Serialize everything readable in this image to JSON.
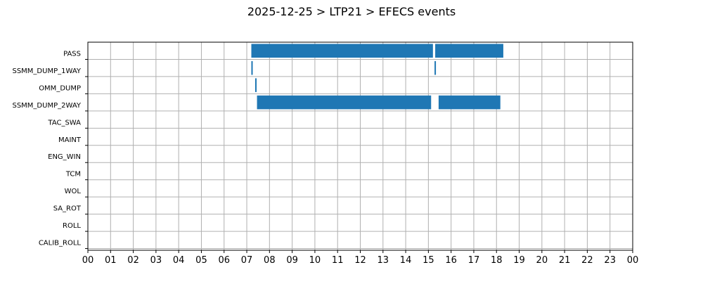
{
  "chart_data": {
    "type": "bar",
    "orientation": "horizontal-timeline",
    "title": "2025-12-25 > LTP21 > EFECS events",
    "xlabel": "",
    "ylabel": "",
    "xlim": [
      0,
      24
    ],
    "x_tick_labels": [
      "00",
      "01",
      "02",
      "03",
      "04",
      "05",
      "06",
      "07",
      "08",
      "09",
      "10",
      "11",
      "12",
      "13",
      "14",
      "15",
      "16",
      "17",
      "18",
      "19",
      "20",
      "21",
      "22",
      "23",
      "00"
    ],
    "categories": [
      "PASS",
      "SSMM_DUMP_1WAY",
      "OMM_DUMP",
      "SSMM_DUMP_2WAY",
      "TAC_SWA",
      "MAINT",
      "ENG_WIN",
      "TCM",
      "WOL",
      "SA_ROT",
      "ROLL",
      "CALIB_ROLL"
    ],
    "grid": true,
    "bar_color": "#1f77b4",
    "series": [
      {
        "category": "PASS",
        "intervals": [
          [
            7.2,
            15.2
          ],
          [
            15.3,
            18.3
          ]
        ]
      },
      {
        "category": "SSMM_DUMP_1WAY",
        "intervals": [
          [
            7.2,
            7.25
          ],
          [
            15.27,
            15.33
          ]
        ]
      },
      {
        "category": "OMM_DUMP",
        "intervals": [
          [
            7.37,
            7.43
          ]
        ]
      },
      {
        "category": "SSMM_DUMP_2WAY",
        "intervals": [
          [
            7.45,
            15.12
          ],
          [
            15.45,
            18.17
          ]
        ]
      },
      {
        "category": "TAC_SWA",
        "intervals": []
      },
      {
        "category": "MAINT",
        "intervals": []
      },
      {
        "category": "ENG_WIN",
        "intervals": []
      },
      {
        "category": "TCM",
        "intervals": []
      },
      {
        "category": "WOL",
        "intervals": []
      },
      {
        "category": "SA_ROT",
        "intervals": []
      },
      {
        "category": "ROLL",
        "intervals": []
      },
      {
        "category": "CALIB_ROLL",
        "intervals": []
      }
    ]
  }
}
